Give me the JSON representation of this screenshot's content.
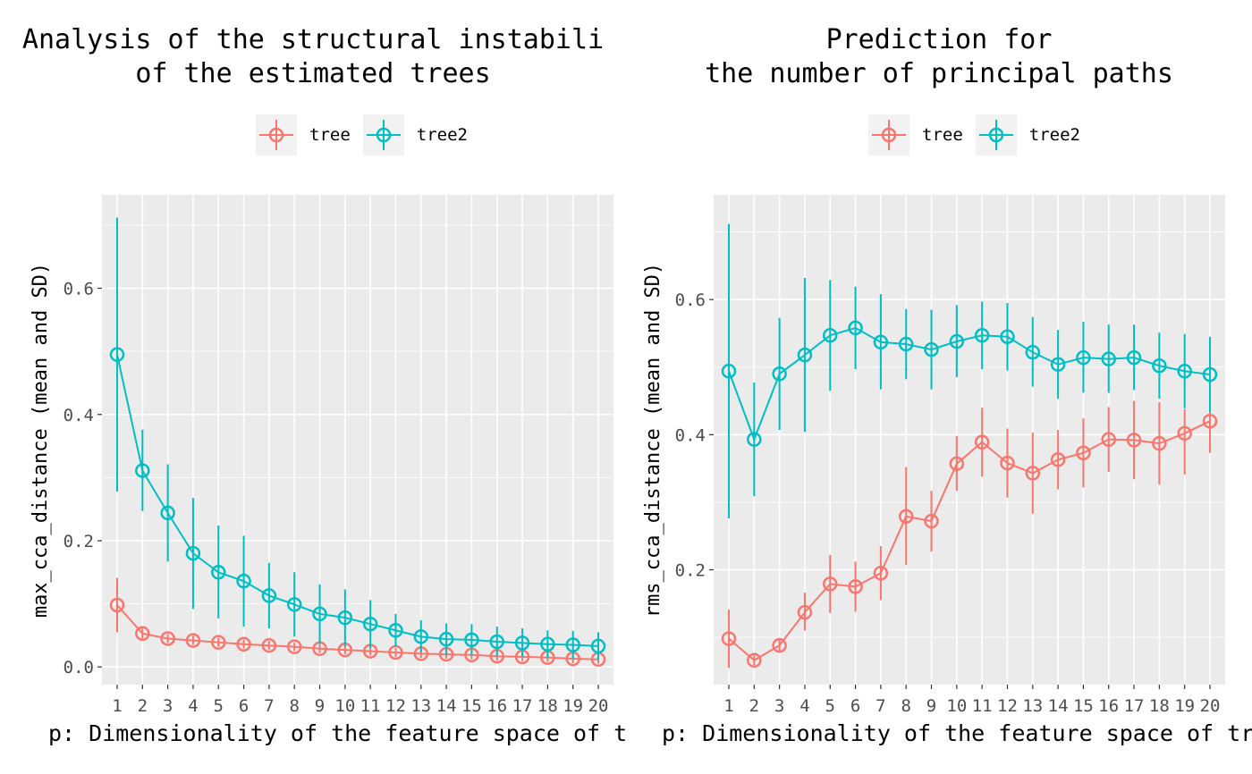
{
  "colors": {
    "tree": "#F8766D",
    "tree2": "#00BFC4",
    "panel_bg": "#EBEBEB",
    "grid": "#FFFFFF"
  },
  "chart_data": [
    {
      "type": "line",
      "title": "Analysis of the structural instabili\nof the estimated trees",
      "xlabel": "p: Dimensionality of the feature space of tr",
      "ylabel": "max_cca_distance (mean and SD)",
      "x": [
        1,
        2,
        3,
        4,
        5,
        6,
        7,
        8,
        9,
        10,
        11,
        12,
        13,
        14,
        15,
        16,
        17,
        18,
        19,
        20
      ],
      "xticks": [
        "1",
        "2",
        "3",
        "4",
        "5",
        "6",
        "7",
        "8",
        "9",
        "10",
        "11",
        "12",
        "13",
        "14",
        "15",
        "16",
        "17",
        "18",
        "19",
        "20"
      ],
      "yticks": [
        "0.0",
        "0.2",
        "0.4",
        "0.6"
      ],
      "ylim": [
        -0.028,
        0.748
      ],
      "legend": {
        "position": "top",
        "entries": [
          "tree",
          "tree2"
        ]
      },
      "grid": true,
      "series": [
        {
          "name": "tree",
          "mean": [
            0.098,
            0.053,
            0.045,
            0.042,
            0.039,
            0.036,
            0.034,
            0.032,
            0.029,
            0.027,
            0.025,
            0.023,
            0.021,
            0.02,
            0.019,
            0.017,
            0.016,
            0.015,
            0.013,
            0.012
          ],
          "lower": [
            0.055,
            0.045,
            0.038,
            0.035,
            0.032,
            0.029,
            0.027,
            0.025,
            0.022,
            0.02,
            0.018,
            0.016,
            0.014,
            0.013,
            0.012,
            0.01,
            0.009,
            0.008,
            0.006,
            0.005
          ],
          "upper": [
            0.141,
            0.061,
            0.052,
            0.049,
            0.046,
            0.043,
            0.041,
            0.039,
            0.036,
            0.034,
            0.032,
            0.03,
            0.028,
            0.027,
            0.026,
            0.024,
            0.023,
            0.022,
            0.02,
            0.019
          ]
        },
        {
          "name": "tree2",
          "mean": [
            0.495,
            0.311,
            0.244,
            0.18,
            0.15,
            0.136,
            0.113,
            0.099,
            0.084,
            0.078,
            0.068,
            0.058,
            0.048,
            0.044,
            0.043,
            0.04,
            0.038,
            0.036,
            0.035,
            0.033
          ],
          "lower": [
            0.278,
            0.247,
            0.167,
            0.092,
            0.077,
            0.064,
            0.061,
            0.048,
            0.036,
            0.032,
            0.03,
            0.032,
            0.023,
            0.019,
            0.018,
            0.017,
            0.016,
            0.014,
            0.013,
            0.011
          ],
          "upper": [
            0.712,
            0.376,
            0.321,
            0.268,
            0.224,
            0.208,
            0.165,
            0.15,
            0.131,
            0.123,
            0.106,
            0.084,
            0.074,
            0.069,
            0.068,
            0.064,
            0.061,
            0.058,
            0.057,
            0.055
          ]
        }
      ]
    },
    {
      "type": "line",
      "title": "Prediction for\nthe number of principal paths",
      "xlabel": "p: Dimensionality of the feature space of tre",
      "ylabel": "rms_cca_distance (mean and SD)",
      "x": [
        1,
        2,
        3,
        4,
        5,
        6,
        7,
        8,
        9,
        10,
        11,
        12,
        13,
        14,
        15,
        16,
        17,
        18,
        19,
        20
      ],
      "xticks": [
        "1",
        "2",
        "3",
        "4",
        "5",
        "6",
        "7",
        "8",
        "9",
        "10",
        "11",
        "12",
        "13",
        "14",
        "15",
        "16",
        "17",
        "18",
        "19",
        "20"
      ],
      "yticks": [
        "0.2",
        "0.4",
        "0.6"
      ],
      "ylim": [
        0.03,
        0.755
      ],
      "legend": {
        "position": "top",
        "entries": [
          "tree",
          "tree2"
        ]
      },
      "grid": true,
      "series": [
        {
          "name": "tree",
          "mean": [
            0.098,
            0.066,
            0.088,
            0.137,
            0.179,
            0.175,
            0.195,
            0.279,
            0.272,
            0.357,
            0.389,
            0.358,
            0.343,
            0.363,
            0.373,
            0.393,
            0.392,
            0.387,
            0.402,
            0.42
          ],
          "lower": [
            0.055,
            0.059,
            0.08,
            0.11,
            0.136,
            0.138,
            0.155,
            0.207,
            0.227,
            0.317,
            0.338,
            0.307,
            0.283,
            0.319,
            0.322,
            0.345,
            0.334,
            0.326,
            0.341,
            0.373
          ],
          "upper": [
            0.141,
            0.073,
            0.096,
            0.166,
            0.222,
            0.212,
            0.235,
            0.352,
            0.317,
            0.398,
            0.44,
            0.409,
            0.403,
            0.407,
            0.424,
            0.441,
            0.45,
            0.448,
            0.438,
            0.436
          ]
        },
        {
          "name": "tree2",
          "mean": [
            0.494,
            0.393,
            0.49,
            0.518,
            0.547,
            0.558,
            0.537,
            0.534,
            0.526,
            0.538,
            0.547,
            0.545,
            0.522,
            0.504,
            0.514,
            0.512,
            0.514,
            0.502,
            0.494,
            0.489
          ],
          "lower": [
            0.276,
            0.309,
            0.407,
            0.404,
            0.465,
            0.497,
            0.467,
            0.482,
            0.467,
            0.485,
            0.497,
            0.495,
            0.471,
            0.453,
            0.462,
            0.462,
            0.466,
            0.453,
            0.439,
            0.433
          ],
          "upper": [
            0.712,
            0.477,
            0.573,
            0.632,
            0.629,
            0.619,
            0.608,
            0.586,
            0.585,
            0.592,
            0.597,
            0.595,
            0.574,
            0.555,
            0.567,
            0.563,
            0.563,
            0.551,
            0.549,
            0.545
          ]
        }
      ]
    }
  ]
}
